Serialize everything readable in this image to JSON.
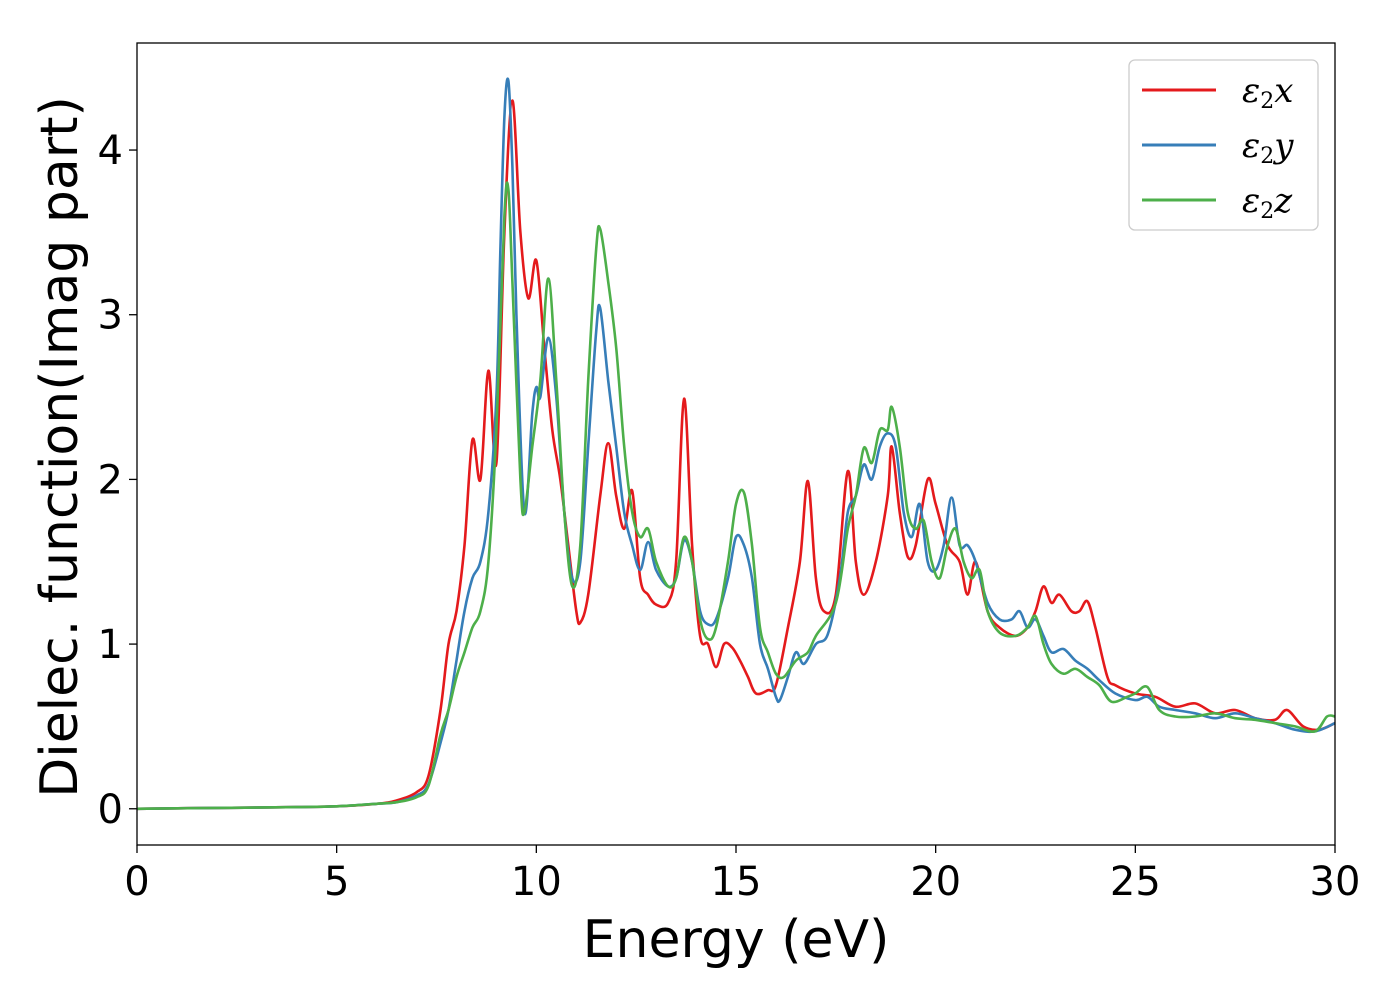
{
  "chart_data": {
    "type": "line",
    "title": "",
    "xlabel": "Energy (eV)",
    "ylabel": "Dielec. function(Imag part)",
    "xlim": [
      0,
      30
    ],
    "ylim": [
      -0.22,
      4.65
    ],
    "xticks": [
      "0",
      "5",
      "10",
      "15",
      "20",
      "25",
      "30"
    ],
    "yticks": [
      "0",
      "1",
      "2",
      "3",
      "4"
    ],
    "grid": false,
    "legend_position": "top-right",
    "series": [
      {
        "name": "ε2x",
        "legend_base": "ε",
        "legend_sub": "2",
        "legend_tail": "x",
        "color": "#e41a1c",
        "points": [
          [
            0,
            0
          ],
          [
            2,
            0.005
          ],
          [
            4,
            0.01
          ],
          [
            5,
            0.015
          ],
          [
            6,
            0.03
          ],
          [
            6.5,
            0.05
          ],
          [
            7,
            0.1
          ],
          [
            7.3,
            0.2
          ],
          [
            7.6,
            0.6
          ],
          [
            7.8,
            1.0
          ],
          [
            8.0,
            1.2
          ],
          [
            8.2,
            1.6
          ],
          [
            8.4,
            2.24
          ],
          [
            8.6,
            2.0
          ],
          [
            8.8,
            2.66
          ],
          [
            9.0,
            2.1
          ],
          [
            9.2,
            3.5
          ],
          [
            9.4,
            4.3
          ],
          [
            9.6,
            3.5
          ],
          [
            9.8,
            3.1
          ],
          [
            10.0,
            3.33
          ],
          [
            10.2,
            2.8
          ],
          [
            10.4,
            2.3
          ],
          [
            10.6,
            2.0
          ],
          [
            10.8,
            1.6
          ],
          [
            11.0,
            1.2
          ],
          [
            11.1,
            1.13
          ],
          [
            11.3,
            1.3
          ],
          [
            11.6,
            1.9
          ],
          [
            11.8,
            2.22
          ],
          [
            12.0,
            1.9
          ],
          [
            12.2,
            1.7
          ],
          [
            12.4,
            1.93
          ],
          [
            12.6,
            1.4
          ],
          [
            12.8,
            1.3
          ],
          [
            13.0,
            1.24
          ],
          [
            13.3,
            1.25
          ],
          [
            13.5,
            1.5
          ],
          [
            13.7,
            2.49
          ],
          [
            13.9,
            1.6
          ],
          [
            14.1,
            1.05
          ],
          [
            14.3,
            1.0
          ],
          [
            14.5,
            0.86
          ],
          [
            14.7,
            1.0
          ],
          [
            14.9,
            0.98
          ],
          [
            15.1,
            0.9
          ],
          [
            15.3,
            0.8
          ],
          [
            15.5,
            0.7
          ],
          [
            15.8,
            0.72
          ],
          [
            16.0,
            0.75
          ],
          [
            16.3,
            1.1
          ],
          [
            16.6,
            1.5
          ],
          [
            16.8,
            1.99
          ],
          [
            17.0,
            1.4
          ],
          [
            17.2,
            1.2
          ],
          [
            17.5,
            1.3
          ],
          [
            17.8,
            2.05
          ],
          [
            18.0,
            1.5
          ],
          [
            18.2,
            1.3
          ],
          [
            18.5,
            1.5
          ],
          [
            18.8,
            1.9
          ],
          [
            18.9,
            2.2
          ],
          [
            19.1,
            1.8
          ],
          [
            19.3,
            1.53
          ],
          [
            19.5,
            1.6
          ],
          [
            19.8,
            2.0
          ],
          [
            20.0,
            1.85
          ],
          [
            20.3,
            1.6
          ],
          [
            20.6,
            1.5
          ],
          [
            20.8,
            1.3
          ],
          [
            21.0,
            1.5
          ],
          [
            21.3,
            1.2
          ],
          [
            21.6,
            1.1
          ],
          [
            22.0,
            1.05
          ],
          [
            22.3,
            1.1
          ],
          [
            22.5,
            1.2
          ],
          [
            22.7,
            1.35
          ],
          [
            22.9,
            1.25
          ],
          [
            23.1,
            1.3
          ],
          [
            23.4,
            1.2
          ],
          [
            23.6,
            1.2
          ],
          [
            23.8,
            1.26
          ],
          [
            24.0,
            1.1
          ],
          [
            24.3,
            0.8
          ],
          [
            24.5,
            0.75
          ],
          [
            25.0,
            0.7
          ],
          [
            25.5,
            0.68
          ],
          [
            26.0,
            0.62
          ],
          [
            26.5,
            0.64
          ],
          [
            27.0,
            0.58
          ],
          [
            27.5,
            0.6
          ],
          [
            28.0,
            0.55
          ],
          [
            28.5,
            0.54
          ],
          [
            28.8,
            0.6
          ],
          [
            29.2,
            0.5
          ],
          [
            29.6,
            0.48
          ],
          [
            30.0,
            0.52
          ]
        ]
      },
      {
        "name": "ε2y",
        "legend_base": "ε",
        "legend_sub": "2",
        "legend_tail": "y",
        "color": "#377eb8",
        "points": [
          [
            0,
            0
          ],
          [
            2,
            0.005
          ],
          [
            4,
            0.01
          ],
          [
            5,
            0.015
          ],
          [
            6,
            0.03
          ],
          [
            6.5,
            0.04
          ],
          [
            7,
            0.08
          ],
          [
            7.3,
            0.15
          ],
          [
            7.6,
            0.4
          ],
          [
            7.8,
            0.6
          ],
          [
            8.0,
            0.9
          ],
          [
            8.2,
            1.2
          ],
          [
            8.4,
            1.4
          ],
          [
            8.6,
            1.5
          ],
          [
            8.8,
            1.8
          ],
          [
            9.0,
            2.5
          ],
          [
            9.1,
            3.4
          ],
          [
            9.2,
            4.2
          ],
          [
            9.3,
            4.42
          ],
          [
            9.4,
            3.9
          ],
          [
            9.5,
            3.0
          ],
          [
            9.7,
            1.8
          ],
          [
            9.9,
            2.4
          ],
          [
            10.0,
            2.56
          ],
          [
            10.1,
            2.5
          ],
          [
            10.3,
            2.86
          ],
          [
            10.5,
            2.5
          ],
          [
            10.7,
            1.8
          ],
          [
            10.9,
            1.4
          ],
          [
            11.1,
            1.5
          ],
          [
            11.3,
            2.2
          ],
          [
            11.5,
            2.9
          ],
          [
            11.6,
            3.04
          ],
          [
            11.8,
            2.6
          ],
          [
            12.0,
            2.2
          ],
          [
            12.2,
            1.8
          ],
          [
            12.4,
            1.6
          ],
          [
            12.6,
            1.45
          ],
          [
            12.8,
            1.62
          ],
          [
            13.0,
            1.45
          ],
          [
            13.3,
            1.35
          ],
          [
            13.5,
            1.4
          ],
          [
            13.7,
            1.63
          ],
          [
            13.9,
            1.5
          ],
          [
            14.1,
            1.2
          ],
          [
            14.3,
            1.12
          ],
          [
            14.5,
            1.15
          ],
          [
            14.8,
            1.4
          ],
          [
            15.0,
            1.65
          ],
          [
            15.2,
            1.6
          ],
          [
            15.4,
            1.4
          ],
          [
            15.6,
            1.0
          ],
          [
            15.8,
            0.85
          ],
          [
            16.0,
            0.68
          ],
          [
            16.1,
            0.66
          ],
          [
            16.3,
            0.8
          ],
          [
            16.5,
            0.95
          ],
          [
            16.7,
            0.88
          ],
          [
            17.0,
            1.0
          ],
          [
            17.3,
            1.06
          ],
          [
            17.6,
            1.4
          ],
          [
            17.8,
            1.8
          ],
          [
            18.0,
            1.9
          ],
          [
            18.2,
            2.09
          ],
          [
            18.4,
            2.0
          ],
          [
            18.6,
            2.2
          ],
          [
            18.8,
            2.28
          ],
          [
            19.0,
            2.2
          ],
          [
            19.2,
            1.8
          ],
          [
            19.4,
            1.65
          ],
          [
            19.6,
            1.85
          ],
          [
            19.8,
            1.5
          ],
          [
            20.0,
            1.45
          ],
          [
            20.2,
            1.6
          ],
          [
            20.4,
            1.89
          ],
          [
            20.6,
            1.6
          ],
          [
            20.8,
            1.6
          ],
          [
            21.0,
            1.5
          ],
          [
            21.3,
            1.25
          ],
          [
            21.6,
            1.15
          ],
          [
            21.9,
            1.15
          ],
          [
            22.1,
            1.2
          ],
          [
            22.3,
            1.1
          ],
          [
            22.5,
            1.15
          ],
          [
            22.7,
            1.05
          ],
          [
            22.9,
            0.95
          ],
          [
            23.2,
            0.97
          ],
          [
            23.5,
            0.9
          ],
          [
            23.8,
            0.85
          ],
          [
            24.1,
            0.78
          ],
          [
            24.5,
            0.7
          ],
          [
            25.0,
            0.66
          ],
          [
            25.3,
            0.68
          ],
          [
            25.6,
            0.62
          ],
          [
            26.0,
            0.6
          ],
          [
            26.5,
            0.58
          ],
          [
            27.0,
            0.55
          ],
          [
            27.5,
            0.58
          ],
          [
            28.0,
            0.55
          ],
          [
            28.5,
            0.52
          ],
          [
            29.0,
            0.48
          ],
          [
            29.5,
            0.47
          ],
          [
            30.0,
            0.52
          ]
        ]
      },
      {
        "name": "ε2z",
        "legend_base": "ε",
        "legend_sub": "2",
        "legend_tail": "z",
        "color": "#4daf4a",
        "points": [
          [
            0,
            0
          ],
          [
            2,
            0.005
          ],
          [
            4,
            0.01
          ],
          [
            5,
            0.015
          ],
          [
            6,
            0.03
          ],
          [
            6.5,
            0.04
          ],
          [
            7,
            0.07
          ],
          [
            7.3,
            0.14
          ],
          [
            7.6,
            0.45
          ],
          [
            7.8,
            0.6
          ],
          [
            8.0,
            0.8
          ],
          [
            8.2,
            0.95
          ],
          [
            8.4,
            1.1
          ],
          [
            8.6,
            1.2
          ],
          [
            8.8,
            1.5
          ],
          [
            9.0,
            2.3
          ],
          [
            9.2,
            3.6
          ],
          [
            9.3,
            3.76
          ],
          [
            9.4,
            3.2
          ],
          [
            9.6,
            2.0
          ],
          [
            9.7,
            1.8
          ],
          [
            9.9,
            2.2
          ],
          [
            10.1,
            2.6
          ],
          [
            10.3,
            3.22
          ],
          [
            10.5,
            2.6
          ],
          [
            10.7,
            1.8
          ],
          [
            10.9,
            1.35
          ],
          [
            11.1,
            1.6
          ],
          [
            11.3,
            2.6
          ],
          [
            11.5,
            3.4
          ],
          [
            11.6,
            3.52
          ],
          [
            11.8,
            3.2
          ],
          [
            12.0,
            2.8
          ],
          [
            12.2,
            2.2
          ],
          [
            12.4,
            1.8
          ],
          [
            12.6,
            1.65
          ],
          [
            12.8,
            1.7
          ],
          [
            13.0,
            1.5
          ],
          [
            13.3,
            1.35
          ],
          [
            13.5,
            1.4
          ],
          [
            13.7,
            1.65
          ],
          [
            13.9,
            1.5
          ],
          [
            14.1,
            1.15
          ],
          [
            14.3,
            1.03
          ],
          [
            14.5,
            1.1
          ],
          [
            14.8,
            1.5
          ],
          [
            15.0,
            1.85
          ],
          [
            15.2,
            1.92
          ],
          [
            15.4,
            1.6
          ],
          [
            15.6,
            1.1
          ],
          [
            15.8,
            0.95
          ],
          [
            16.0,
            0.82
          ],
          [
            16.2,
            0.8
          ],
          [
            16.5,
            0.9
          ],
          [
            16.8,
            0.95
          ],
          [
            17.0,
            1.05
          ],
          [
            17.5,
            1.25
          ],
          [
            17.8,
            1.7
          ],
          [
            18.0,
            1.9
          ],
          [
            18.2,
            2.19
          ],
          [
            18.4,
            2.1
          ],
          [
            18.6,
            2.3
          ],
          [
            18.8,
            2.3
          ],
          [
            18.9,
            2.44
          ],
          [
            19.1,
            2.2
          ],
          [
            19.3,
            1.8
          ],
          [
            19.5,
            1.7
          ],
          [
            19.7,
            1.75
          ],
          [
            19.9,
            1.5
          ],
          [
            20.1,
            1.4
          ],
          [
            20.3,
            1.6
          ],
          [
            20.5,
            1.7
          ],
          [
            20.7,
            1.5
          ],
          [
            20.9,
            1.4
          ],
          [
            21.1,
            1.45
          ],
          [
            21.3,
            1.2
          ],
          [
            21.6,
            1.07
          ],
          [
            22.0,
            1.05
          ],
          [
            22.3,
            1.1
          ],
          [
            22.5,
            1.17
          ],
          [
            22.7,
            1.0
          ],
          [
            22.9,
            0.88
          ],
          [
            23.2,
            0.82
          ],
          [
            23.5,
            0.85
          ],
          [
            23.8,
            0.8
          ],
          [
            24.1,
            0.75
          ],
          [
            24.4,
            0.65
          ],
          [
            24.8,
            0.68
          ],
          [
            25.0,
            0.7
          ],
          [
            25.3,
            0.74
          ],
          [
            25.6,
            0.6
          ],
          [
            26.0,
            0.56
          ],
          [
            26.5,
            0.56
          ],
          [
            27.0,
            0.58
          ],
          [
            27.5,
            0.55
          ],
          [
            28.0,
            0.54
          ],
          [
            28.5,
            0.52
          ],
          [
            29.0,
            0.5
          ],
          [
            29.5,
            0.47
          ],
          [
            29.8,
            0.56
          ],
          [
            30.0,
            0.56
          ]
        ]
      }
    ]
  }
}
